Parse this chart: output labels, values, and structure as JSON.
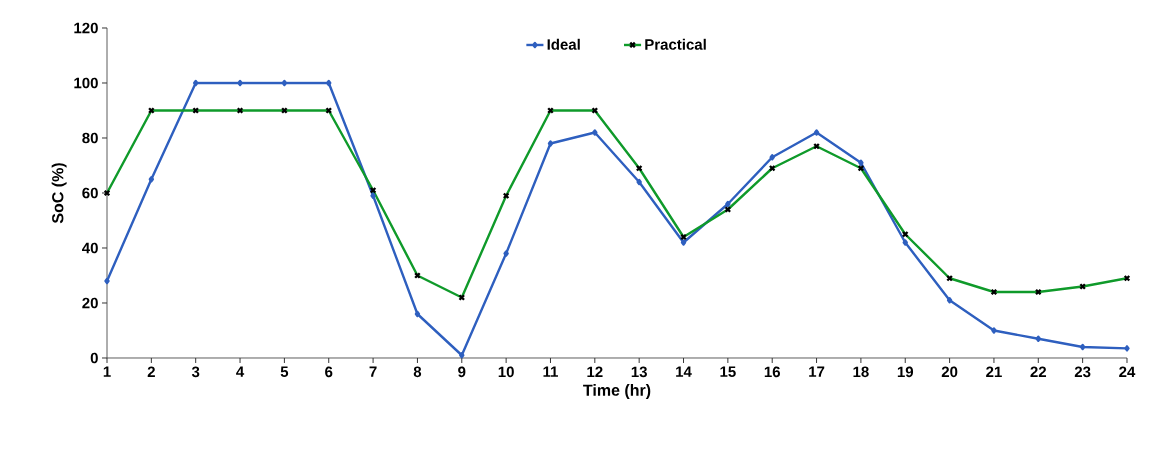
{
  "chart_data": {
    "type": "line",
    "xlabel": "Time (hr)",
    "ylabel": "SoC (%)",
    "categories": [
      "1",
      "2",
      "3",
      "4",
      "5",
      "6",
      "7",
      "8",
      "9",
      "10",
      "11",
      "12",
      "13",
      "14",
      "15",
      "16",
      "17",
      "18",
      "19",
      "20",
      "21",
      "22",
      "23",
      "24"
    ],
    "ylim": [
      0,
      120
    ],
    "yticks": [
      0,
      20,
      40,
      60,
      80,
      100,
      120
    ],
    "grid": false,
    "legend": "top",
    "series": [
      {
        "name": "Ideal",
        "color": "#2e5fbf",
        "marker": "diamond",
        "values": [
          28,
          65,
          100,
          100,
          100,
          100,
          59,
          16,
          1,
          38,
          78,
          82,
          64,
          42,
          56,
          73,
          82,
          71,
          42,
          21,
          10,
          7,
          4,
          3.5
        ]
      },
      {
        "name": "Practical",
        "color": "#0f9a2a",
        "marker": "cross",
        "values": [
          60,
          90,
          90,
          90,
          90,
          90,
          61,
          30,
          22,
          59,
          90,
          90,
          69,
          44,
          54,
          69,
          77,
          69,
          45,
          29,
          24,
          24,
          26,
          29
        ]
      }
    ]
  }
}
